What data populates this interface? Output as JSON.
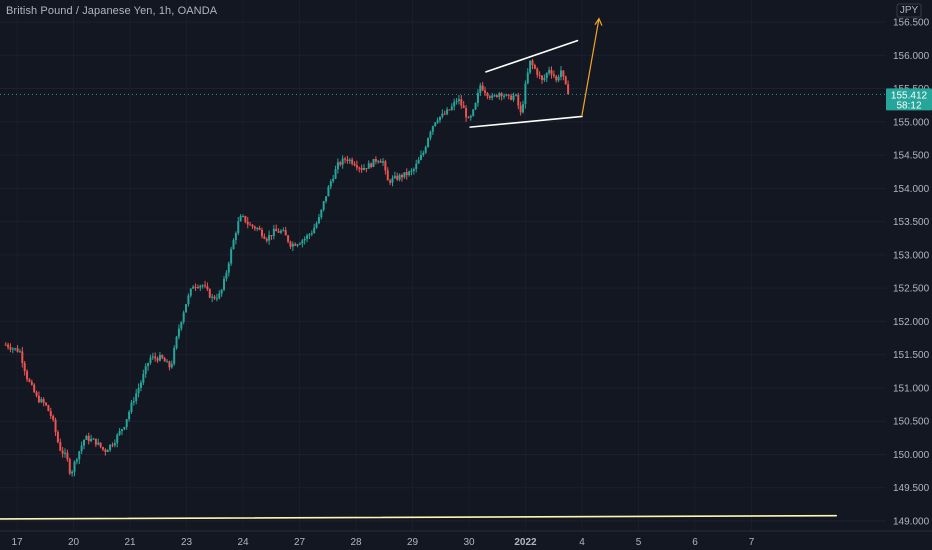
{
  "window": {
    "title": "British Pound / Japanese Yen, 1h, OANDA"
  },
  "price_axis": {
    "currency": "JPY"
  },
  "current_price": {
    "value": "155.412",
    "countdown": "58:12"
  },
  "colors": {
    "background": "#131722",
    "up": "#26a69a",
    "down": "#ef5350",
    "trendline": "#ffffff",
    "support_line": "#fff7b0",
    "projection_arrow": "#f5a623",
    "price_label_bg": "#26a69a",
    "axis_text": "#b2b5be"
  },
  "chart_data": {
    "type": "candlestick",
    "title": "British Pound / Japanese Yen, 1h, OANDA",
    "ylim": [
      149.0,
      156.6
    ],
    "y_ticks": [
      "156.500",
      "156.000",
      "155.500",
      "155.000",
      "154.500",
      "154.000",
      "153.500",
      "153.000",
      "152.500",
      "152.000",
      "151.500",
      "151.000",
      "150.500",
      "150.000",
      "149.500",
      "149.000"
    ],
    "x_ticks": [
      {
        "label": "17",
        "pos": 0.0
      },
      {
        "label": "20",
        "pos": 1.0
      },
      {
        "label": "21",
        "pos": 2.0
      },
      {
        "label": "23",
        "pos": 3.0
      },
      {
        "label": "24",
        "pos": 4.0
      },
      {
        "label": "27",
        "pos": 5.0
      },
      {
        "label": "28",
        "pos": 6.0
      },
      {
        "label": "29",
        "pos": 7.0
      },
      {
        "label": "30",
        "pos": 8.0
      },
      {
        "label": "2022",
        "pos": 9.0,
        "bold": true
      },
      {
        "label": "4",
        "pos": 10.0
      },
      {
        "label": "5",
        "pos": 11.0
      },
      {
        "label": "6",
        "pos": 12.0
      },
      {
        "label": "7",
        "pos": 13.0
      }
    ],
    "last_price": 155.412,
    "close_path": [
      [
        -0.2,
        151.65
      ],
      [
        0.05,
        151.55
      ],
      [
        0.18,
        151.15
      ],
      [
        0.35,
        150.85
      ],
      [
        0.5,
        150.75
      ],
      [
        0.62,
        150.55
      ],
      [
        0.75,
        150.1
      ],
      [
        0.88,
        149.95
      ],
      [
        0.95,
        149.7
      ],
      [
        1.05,
        149.95
      ],
      [
        1.2,
        150.25
      ],
      [
        1.38,
        150.2
      ],
      [
        1.55,
        150.05
      ],
      [
        1.72,
        150.2
      ],
      [
        1.9,
        150.45
      ],
      [
        2.05,
        150.8
      ],
      [
        2.2,
        151.1
      ],
      [
        2.35,
        151.45
      ],
      [
        2.55,
        151.45
      ],
      [
        2.72,
        151.3
      ],
      [
        2.85,
        151.85
      ],
      [
        2.98,
        152.25
      ],
      [
        3.12,
        152.55
      ],
      [
        3.28,
        152.55
      ],
      [
        3.45,
        152.35
      ],
      [
        3.6,
        152.4
      ],
      [
        3.68,
        152.65
      ],
      [
        3.8,
        153.1
      ],
      [
        3.9,
        153.45
      ],
      [
        3.95,
        153.55
      ],
      [
        4.02,
        153.55
      ],
      [
        4.1,
        153.45
      ],
      [
        4.25,
        153.4
      ],
      [
        4.42,
        153.25
      ],
      [
        4.55,
        153.35
      ],
      [
        4.7,
        153.35
      ],
      [
        4.85,
        153.15
      ],
      [
        5.0,
        153.2
      ],
      [
        5.1,
        153.25
      ],
      [
        5.22,
        153.35
      ],
      [
        5.35,
        153.55
      ],
      [
        5.45,
        153.85
      ],
      [
        5.55,
        154.1
      ],
      [
        5.68,
        154.35
      ],
      [
        5.82,
        154.45
      ],
      [
        5.95,
        154.4
      ],
      [
        6.1,
        154.3
      ],
      [
        6.25,
        154.35
      ],
      [
        6.38,
        154.45
      ],
      [
        6.48,
        154.4
      ],
      [
        6.55,
        154.1
      ],
      [
        6.7,
        154.15
      ],
      [
        6.85,
        154.2
      ],
      [
        7.0,
        154.25
      ],
      [
        7.1,
        154.4
      ],
      [
        7.2,
        154.55
      ],
      [
        7.3,
        154.85
      ],
      [
        7.42,
        155.05
      ],
      [
        7.55,
        155.1
      ],
      [
        7.68,
        155.2
      ],
      [
        7.8,
        155.35
      ],
      [
        7.9,
        155.2
      ],
      [
        8.0,
        155.0
      ],
      [
        8.1,
        155.2
      ],
      [
        8.2,
        155.55
      ],
      [
        8.3,
        155.45
      ],
      [
        8.42,
        155.35
      ],
      [
        8.55,
        155.45
      ],
      [
        8.7,
        155.35
      ],
      [
        8.82,
        155.4
      ],
      [
        8.92,
        155.1
      ],
      [
        9.0,
        155.55
      ],
      [
        9.08,
        155.9
      ],
      [
        9.2,
        155.75
      ],
      [
        9.3,
        155.6
      ],
      [
        9.42,
        155.8
      ],
      [
        9.5,
        155.7
      ],
      [
        9.55,
        155.6
      ],
      [
        9.62,
        155.8
      ],
      [
        9.7,
        155.55
      ],
      [
        9.76,
        155.412
      ]
    ],
    "annotations": {
      "upper_trendline": [
        [
          8.3,
          155.75
        ],
        [
          9.92,
          156.22
        ]
      ],
      "lower_trendline": [
        [
          8.02,
          154.92
        ],
        [
          10.0,
          155.08
        ]
      ],
      "support_line": [
        [
          -0.5,
          149.03
        ],
        [
          14.5,
          149.08
        ]
      ],
      "projection_arrow": [
        [
          10.0,
          155.1
        ],
        [
          10.3,
          156.55
        ]
      ]
    }
  }
}
